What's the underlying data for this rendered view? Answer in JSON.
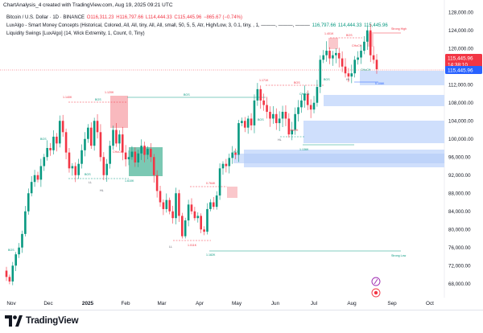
{
  "header": {
    "credit": "ChartAnalysis_4 created with TradingView.com, Aug 19, 2025 09:21 UTC"
  },
  "legend": {
    "symbol": "Bitcoin / U.S. Dollar · 1D · BINANCE",
    "open": "O116,311.23",
    "high": "H116,797.66",
    "low": "L114,444.33",
    "close": "C115,445.96",
    "change": "−865.67 (−0.74%)",
    "smc": "LuxAlgo - Smart Money Concepts (Historical, Colored, All, All, tiny, All, All, small, 50, 5, 5, Atr, High/Low, 3, 0.1, tiny, , 1, ———, ———, ———",
    "smc_values": [
      "116,797.66",
      "114,444.33",
      "115,445.96"
    ],
    "swings": "Liquidity Swings [LuxAlgo] (14, Wick Extremity, 1, Count, 0, Tiny)"
  },
  "footer": {
    "brand": "TradingView"
  },
  "colors": {
    "up": "#089981",
    "down": "#f23645",
    "accent": "#2962ff",
    "price_label": "#f23645",
    "price_label_blue": "#2962ff",
    "zone_blue": "#cfdffc",
    "zone_red": "#f7a1a8",
    "zone_green": "#4fb59a"
  },
  "axis": {
    "y_ticks": [
      "128,000.00",
      "124,000.00",
      "120,000.00",
      "116,000.00",
      "112,000.00",
      "108,000.00",
      "104,000.00",
      "100,000.00",
      "96,000.00",
      "92,000.00",
      "88,000.00",
      "84,000.00",
      "80,000.00",
      "76,000.00",
      "72,000.00",
      "68,000.00"
    ],
    "x_ticks": [
      "Nov",
      "Dec",
      "2025",
      "Feb",
      "Mar",
      "Apr",
      "May",
      "Jun",
      "Jul",
      "Aug",
      "Sep",
      "Oct"
    ],
    "last_price_box": [
      "115,445.96",
      "14:38:10"
    ],
    "last_price_box2": "115,445.96",
    "current_label": "120,000.00"
  },
  "annotations": {
    "bos": [
      "BOS",
      "BOS",
      "BOS",
      "BOS",
      "BOS",
      "BOS",
      "BOS",
      "BOS",
      "BOS",
      "BOS"
    ],
    "choch": [
      "CHoCH",
      "CHoCH",
      "CHoCH",
      "CHoCH",
      "CHoCH"
    ],
    "swing_labels": [
      "HH",
      "LH",
      "HL",
      "LL",
      "HH",
      "HL",
      "HL",
      "LL",
      "HH",
      "HL",
      "HH",
      "LH",
      "HL"
    ],
    "strong_high": "Strong High",
    "strong_low": "Strong Low",
    "liq_labels": [
      "1.140K",
      "1.120K",
      "1.171K",
      "1.401K",
      "0.764K",
      "1.610K",
      "1.182K",
      "1.011K",
      "1.136K",
      "0.106K"
    ]
  },
  "chart_data": {
    "type": "candlestick",
    "title": "Bitcoin / U.S. Dollar · 1D · BINANCE",
    "ylim": [
      66000,
      130000
    ],
    "grid": false,
    "closes_approx": [
      69500,
      68500,
      72000,
      74500,
      76000,
      79000,
      84000,
      88000,
      90500,
      92000,
      91000,
      94000,
      96000,
      98000,
      97500,
      100500,
      99000,
      104000,
      101500,
      97000,
      93500,
      94000,
      92000,
      94500,
      97500,
      100000,
      102500,
      98500,
      104000,
      101500,
      96000,
      92000,
      94500,
      98500,
      102000,
      99000,
      101000,
      97000,
      95500,
      96000,
      97200,
      94800,
      96800,
      98500,
      96500,
      97800,
      96000,
      92000,
      88500,
      86000,
      84500,
      86500,
      84000,
      82500,
      88000,
      83000,
      78500,
      82000,
      85500,
      84000,
      82500,
      83000,
      80000,
      79500,
      84500,
      86000,
      85000,
      87500,
      93500,
      94500,
      94000,
      95800,
      97000,
      96500,
      103500,
      104000,
      102500,
      104500,
      103000,
      108500,
      111000,
      108500,
      107500,
      106000,
      104500,
      105500,
      103500,
      104500,
      106000,
      104500,
      101000,
      102000,
      105500,
      107000,
      108500,
      110000,
      107500,
      106500,
      108000,
      111500,
      117500,
      118500,
      119500,
      117800,
      118500,
      119000,
      117800,
      116000,
      114500,
      113800,
      114500,
      117500,
      118000,
      119500,
      121500,
      124000,
      118500,
      117500,
      115400
    ]
  }
}
